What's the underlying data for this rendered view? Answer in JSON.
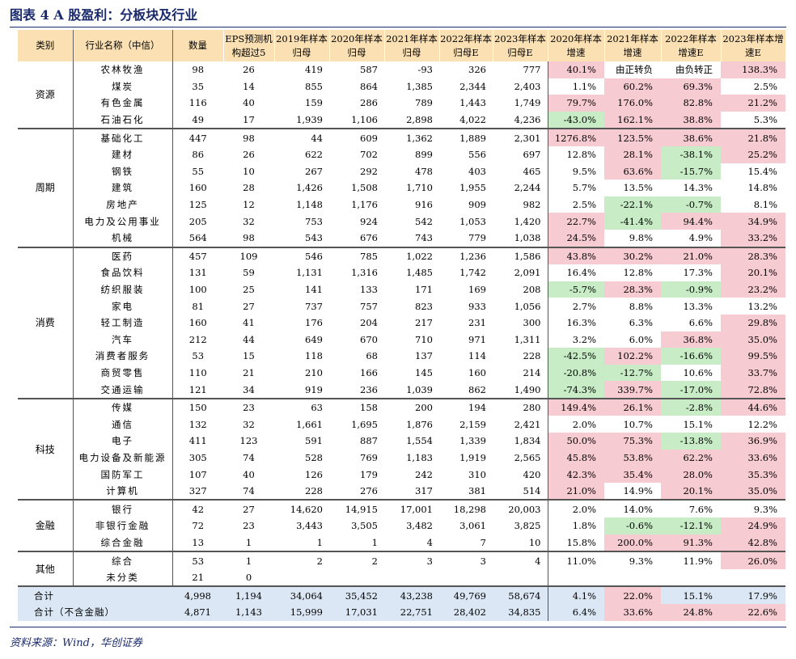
{
  "title": "图表 4  A 股盈利：分板块及行业",
  "source": "资料来源：Wind，华创证券",
  "headers": [
    "类别",
    "行业名称（中信）",
    "数量",
    "EPS预测机构超过5",
    "2019年样本归母",
    "2020年样本归母",
    "2021年样本归母",
    "2022年样本归母E",
    "2023年样本归母E",
    "2020年样本增速",
    "2021年样本增速",
    "2022年样本增速E",
    "2023年样本增速E"
  ],
  "groups": [
    {
      "category": "资源",
      "rows": [
        {
          "name": "农林牧渔",
          "count": "98",
          "eps": "26",
          "v2019": "419",
          "v2020": "587",
          "v2021": "-93",
          "v2022": "326",
          "v2023": "777",
          "g2020": "40.1%",
          "g2021": "由正转负",
          "g2022": "由负转正",
          "g2023": "138.3%",
          "c": [
            "r",
            "w",
            "w",
            "r"
          ]
        },
        {
          "name": "煤炭",
          "count": "35",
          "eps": "14",
          "v2019": "855",
          "v2020": "864",
          "v2021": "1,385",
          "v2022": "2,344",
          "v2023": "2,403",
          "g2020": "1.1%",
          "g2021": "60.2%",
          "g2022": "69.3%",
          "g2023": "2.5%",
          "c": [
            "w",
            "r",
            "r",
            "w"
          ]
        },
        {
          "name": "有色金属",
          "count": "116",
          "eps": "40",
          "v2019": "159",
          "v2020": "286",
          "v2021": "789",
          "v2022": "1,443",
          "v2023": "1,749",
          "g2020": "79.7%",
          "g2021": "176.0%",
          "g2022": "82.8%",
          "g2023": "21.2%",
          "c": [
            "r",
            "r",
            "r",
            "r"
          ]
        },
        {
          "name": "石油石化",
          "count": "49",
          "eps": "17",
          "v2019": "1,939",
          "v2020": "1,106",
          "v2021": "2,898",
          "v2022": "4,022",
          "v2023": "4,236",
          "g2020": "-43.0%",
          "g2021": "162.1%",
          "g2022": "38.8%",
          "g2023": "5.3%",
          "c": [
            "g",
            "r",
            "r",
            "w"
          ]
        }
      ]
    },
    {
      "category": "周期",
      "rows": [
        {
          "name": "基础化工",
          "count": "447",
          "eps": "98",
          "v2019": "44",
          "v2020": "609",
          "v2021": "1,362",
          "v2022": "1,889",
          "v2023": "2,301",
          "g2020": "1276.8%",
          "g2021": "123.5%",
          "g2022": "38.6%",
          "g2023": "21.8%",
          "c": [
            "r",
            "r",
            "r",
            "r"
          ]
        },
        {
          "name": "建材",
          "count": "86",
          "eps": "26",
          "v2019": "622",
          "v2020": "702",
          "v2021": "899",
          "v2022": "556",
          "v2023": "697",
          "g2020": "12.8%",
          "g2021": "28.1%",
          "g2022": "-38.1%",
          "g2023": "25.2%",
          "c": [
            "w",
            "r",
            "g",
            "r"
          ]
        },
        {
          "name": "钢铁",
          "count": "55",
          "eps": "10",
          "v2019": "267",
          "v2020": "292",
          "v2021": "478",
          "v2022": "403",
          "v2023": "465",
          "g2020": "9.5%",
          "g2021": "63.6%",
          "g2022": "-15.7%",
          "g2023": "15.4%",
          "c": [
            "w",
            "r",
            "g",
            "w"
          ]
        },
        {
          "name": "建筑",
          "count": "160",
          "eps": "28",
          "v2019": "1,426",
          "v2020": "1,508",
          "v2021": "1,710",
          "v2022": "1,955",
          "v2023": "2,244",
          "g2020": "5.7%",
          "g2021": "13.5%",
          "g2022": "14.3%",
          "g2023": "14.8%",
          "c": [
            "w",
            "w",
            "w",
            "w"
          ]
        },
        {
          "name": "房地产",
          "count": "125",
          "eps": "12",
          "v2019": "1,148",
          "v2020": "1,176",
          "v2021": "916",
          "v2022": "909",
          "v2023": "982",
          "g2020": "2.5%",
          "g2021": "-22.1%",
          "g2022": "-0.7%",
          "g2023": "8.1%",
          "c": [
            "w",
            "g",
            "g",
            "w"
          ]
        },
        {
          "name": "电力及公用事业",
          "count": "205",
          "eps": "32",
          "v2019": "753",
          "v2020": "924",
          "v2021": "542",
          "v2022": "1,053",
          "v2023": "1,420",
          "g2020": "22.7%",
          "g2021": "-41.4%",
          "g2022": "94.4%",
          "g2023": "34.9%",
          "c": [
            "r",
            "g",
            "r",
            "r"
          ]
        },
        {
          "name": "机械",
          "count": "564",
          "eps": "98",
          "v2019": "543",
          "v2020": "676",
          "v2021": "743",
          "v2022": "779",
          "v2023": "1,038",
          "g2020": "24.5%",
          "g2021": "9.8%",
          "g2022": "4.9%",
          "g2023": "33.2%",
          "c": [
            "r",
            "w",
            "w",
            "r"
          ]
        }
      ]
    },
    {
      "category": "消费",
      "rows": [
        {
          "name": "医药",
          "count": "457",
          "eps": "109",
          "v2019": "546",
          "v2020": "785",
          "v2021": "1,022",
          "v2022": "1,236",
          "v2023": "1,586",
          "g2020": "43.8%",
          "g2021": "30.2%",
          "g2022": "21.0%",
          "g2023": "28.3%",
          "c": [
            "r",
            "r",
            "r",
            "r"
          ]
        },
        {
          "name": "食品饮料",
          "count": "131",
          "eps": "59",
          "v2019": "1,131",
          "v2020": "1,316",
          "v2021": "1,485",
          "v2022": "1,742",
          "v2023": "2,091",
          "g2020": "16.4%",
          "g2021": "12.8%",
          "g2022": "17.3%",
          "g2023": "20.1%",
          "c": [
            "w",
            "w",
            "w",
            "r"
          ]
        },
        {
          "name": "纺织服装",
          "count": "100",
          "eps": "25",
          "v2019": "141",
          "v2020": "133",
          "v2021": "171",
          "v2022": "169",
          "v2023": "208",
          "g2020": "-5.7%",
          "g2021": "28.3%",
          "g2022": "-0.9%",
          "g2023": "23.2%",
          "c": [
            "g",
            "r",
            "g",
            "r"
          ]
        },
        {
          "name": "家电",
          "count": "81",
          "eps": "27",
          "v2019": "737",
          "v2020": "757",
          "v2021": "823",
          "v2022": "933",
          "v2023": "1,056",
          "g2020": "2.7%",
          "g2021": "8.8%",
          "g2022": "13.3%",
          "g2023": "13.2%",
          "c": [
            "w",
            "w",
            "w",
            "w"
          ]
        },
        {
          "name": "轻工制造",
          "count": "160",
          "eps": "41",
          "v2019": "176",
          "v2020": "204",
          "v2021": "217",
          "v2022": "231",
          "v2023": "300",
          "g2020": "16.3%",
          "g2021": "6.3%",
          "g2022": "6.6%",
          "g2023": "29.8%",
          "c": [
            "w",
            "w",
            "w",
            "r"
          ]
        },
        {
          "name": "汽车",
          "count": "212",
          "eps": "44",
          "v2019": "649",
          "v2020": "670",
          "v2021": "710",
          "v2022": "971",
          "v2023": "1,311",
          "g2020": "3.2%",
          "g2021": "6.0%",
          "g2022": "36.8%",
          "g2023": "35.0%",
          "c": [
            "w",
            "w",
            "r",
            "r"
          ]
        },
        {
          "name": "消费者服务",
          "count": "53",
          "eps": "15",
          "v2019": "118",
          "v2020": "68",
          "v2021": "137",
          "v2022": "114",
          "v2023": "228",
          "g2020": "-42.5%",
          "g2021": "102.2%",
          "g2022": "-16.6%",
          "g2023": "99.5%",
          "c": [
            "g",
            "r",
            "g",
            "r"
          ]
        },
        {
          "name": "商贸零售",
          "count": "110",
          "eps": "21",
          "v2019": "210",
          "v2020": "166",
          "v2021": "145",
          "v2022": "160",
          "v2023": "214",
          "g2020": "-20.8%",
          "g2021": "-12.7%",
          "g2022": "10.6%",
          "g2023": "33.7%",
          "c": [
            "g",
            "g",
            "w",
            "r"
          ]
        },
        {
          "name": "交通运输",
          "count": "121",
          "eps": "34",
          "v2019": "919",
          "v2020": "236",
          "v2021": "1,039",
          "v2022": "862",
          "v2023": "1,490",
          "g2020": "-74.3%",
          "g2021": "339.7%",
          "g2022": "-17.0%",
          "g2023": "72.8%",
          "c": [
            "g",
            "r",
            "g",
            "r"
          ]
        }
      ]
    },
    {
      "category": "科技",
      "rows": [
        {
          "name": "传媒",
          "count": "150",
          "eps": "23",
          "v2019": "63",
          "v2020": "158",
          "v2021": "200",
          "v2022": "194",
          "v2023": "280",
          "g2020": "149.4%",
          "g2021": "26.1%",
          "g2022": "-2.8%",
          "g2023": "44.6%",
          "c": [
            "r",
            "r",
            "g",
            "r"
          ]
        },
        {
          "name": "通信",
          "count": "132",
          "eps": "32",
          "v2019": "1,661",
          "v2020": "1,695",
          "v2021": "1,876",
          "v2022": "2,159",
          "v2023": "2,421",
          "g2020": "2.0%",
          "g2021": "10.7%",
          "g2022": "15.1%",
          "g2023": "12.2%",
          "c": [
            "w",
            "w",
            "w",
            "w"
          ]
        },
        {
          "name": "电子",
          "count": "411",
          "eps": "123",
          "v2019": "591",
          "v2020": "887",
          "v2021": "1,554",
          "v2022": "1,339",
          "v2023": "1,834",
          "g2020": "50.0%",
          "g2021": "75.3%",
          "g2022": "-13.8%",
          "g2023": "36.9%",
          "c": [
            "r",
            "r",
            "g",
            "r"
          ]
        },
        {
          "name": "电力设备及新能源",
          "count": "305",
          "eps": "74",
          "v2019": "528",
          "v2020": "769",
          "v2021": "1,183",
          "v2022": "1,919",
          "v2023": "2,565",
          "g2020": "45.8%",
          "g2021": "53.8%",
          "g2022": "62.2%",
          "g2023": "33.6%",
          "c": [
            "r",
            "r",
            "r",
            "r"
          ]
        },
        {
          "name": "国防军工",
          "count": "107",
          "eps": "40",
          "v2019": "126",
          "v2020": "179",
          "v2021": "242",
          "v2022": "310",
          "v2023": "420",
          "g2020": "42.3%",
          "g2021": "35.4%",
          "g2022": "28.0%",
          "g2023": "35.3%",
          "c": [
            "r",
            "r",
            "r",
            "r"
          ]
        },
        {
          "name": "计算机",
          "count": "327",
          "eps": "74",
          "v2019": "228",
          "v2020": "276",
          "v2021": "317",
          "v2022": "381",
          "v2023": "514",
          "g2020": "21.0%",
          "g2021": "14.9%",
          "g2022": "20.1%",
          "g2023": "35.0%",
          "c": [
            "r",
            "w",
            "r",
            "r"
          ]
        }
      ]
    },
    {
      "category": "金融",
      "rows": [
        {
          "name": "银行",
          "count": "42",
          "eps": "27",
          "v2019": "14,620",
          "v2020": "14,915",
          "v2021": "17,001",
          "v2022": "18,298",
          "v2023": "20,003",
          "g2020": "2.0%",
          "g2021": "14.0%",
          "g2022": "7.6%",
          "g2023": "9.3%",
          "c": [
            "w",
            "w",
            "w",
            "w"
          ]
        },
        {
          "name": "非银行金融",
          "count": "72",
          "eps": "23",
          "v2019": "3,443",
          "v2020": "3,505",
          "v2021": "3,482",
          "v2022": "3,061",
          "v2023": "3,825",
          "g2020": "1.8%",
          "g2021": "-0.6%",
          "g2022": "-12.1%",
          "g2023": "24.9%",
          "c": [
            "w",
            "g",
            "g",
            "r"
          ]
        },
        {
          "name": "综合金融",
          "count": "13",
          "eps": "1",
          "v2019": "1",
          "v2020": "1",
          "v2021": "4",
          "v2022": "7",
          "v2023": "10",
          "g2020": "15.8%",
          "g2021": "200.0%",
          "g2022": "91.3%",
          "g2023": "42.8%",
          "c": [
            "w",
            "r",
            "r",
            "r"
          ]
        }
      ]
    },
    {
      "category": "其他",
      "rows": [
        {
          "name": "综合",
          "count": "53",
          "eps": "1",
          "v2019": "2",
          "v2020": "2",
          "v2021": "3",
          "v2022": "3",
          "v2023": "4",
          "g2020": "11.0%",
          "g2021": "9.3%",
          "g2022": "11.9%",
          "g2023": "26.0%",
          "c": [
            "w",
            "w",
            "w",
            "r"
          ]
        },
        {
          "name": "未分类",
          "count": "21",
          "eps": "0",
          "v2019": "",
          "v2020": "",
          "v2021": "",
          "v2022": "",
          "v2023": "",
          "g2020": "",
          "g2021": "",
          "g2022": "",
          "g2023": "",
          "c": [
            "w",
            "w",
            "w",
            "w"
          ]
        }
      ]
    }
  ],
  "totals": [
    {
      "name": "合计",
      "count": "4,998",
      "eps": "1,194",
      "v2019": "34,064",
      "v2020": "35,452",
      "v2021": "43,238",
      "v2022": "49,769",
      "v2023": "58,674",
      "g2020": "4.1%",
      "g2021": "22.0%",
      "g2022": "15.1%",
      "g2023": "17.9%",
      "c": [
        "",
        "r",
        "",
        ""
      ]
    },
    {
      "name": "合计（不含金融）",
      "count": "4,871",
      "eps": "1,143",
      "v2019": "15,999",
      "v2020": "17,031",
      "v2021": "22,751",
      "v2022": "28,402",
      "v2023": "34,835",
      "g2020": "6.4%",
      "g2021": "33.6%",
      "g2022": "24.8%",
      "g2023": "22.6%",
      "c": [
        "",
        "r",
        "r",
        "r"
      ]
    }
  ],
  "colors": {
    "header_bg": "#fbe0b3",
    "pos_highlight": "#f7cbd2",
    "neg_highlight": "#c7ecc6",
    "total_bg": "#dbe7f4",
    "title": "#1a2a6c"
  }
}
